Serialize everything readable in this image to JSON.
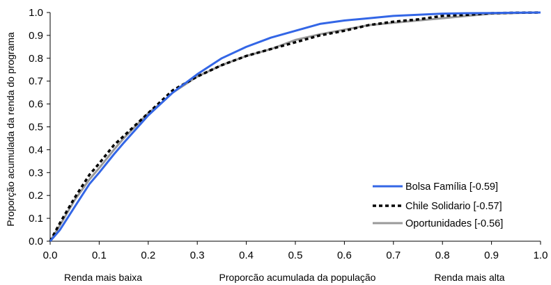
{
  "chart_data": {
    "type": "line",
    "title": "",
    "ylabel": "Proporção acumulada da renda do programa",
    "xlabel": "Proporcão acumulada da população",
    "x_left_label": "Renda mais baixa",
    "x_right_label": "Renda mais alta",
    "xlim": [
      0.0,
      1.0
    ],
    "ylim": [
      0.0,
      1.0
    ],
    "x_ticks": [
      "0.0",
      "0.1",
      "0.2",
      "0.3",
      "0.4",
      "0.5",
      "0.6",
      "0.7",
      "0.8",
      "0.9",
      "1.0"
    ],
    "y_ticks": [
      "0.0",
      "0.1",
      "0.2",
      "0.3",
      "0.4",
      "0.5",
      "0.6",
      "0.7",
      "0.8",
      "0.9",
      "1.0"
    ],
    "grid": false,
    "legend_position": "bottom-right",
    "series": [
      {
        "name": "Bolsa Família [-0.59]",
        "color": "#3366e6",
        "style": "solid",
        "points": [
          [
            0,
            0
          ],
          [
            0.02,
            0.05
          ],
          [
            0.05,
            0.15
          ],
          [
            0.08,
            0.25
          ],
          [
            0.1,
            0.3
          ],
          [
            0.13,
            0.38
          ],
          [
            0.15,
            0.43
          ],
          [
            0.2,
            0.55
          ],
          [
            0.25,
            0.65
          ],
          [
            0.3,
            0.73
          ],
          [
            0.35,
            0.8
          ],
          [
            0.4,
            0.85
          ],
          [
            0.45,
            0.89
          ],
          [
            0.5,
            0.92
          ],
          [
            0.55,
            0.95
          ],
          [
            0.6,
            0.965
          ],
          [
            0.65,
            0.975
          ],
          [
            0.7,
            0.985
          ],
          [
            0.75,
            0.99
          ],
          [
            0.8,
            0.995
          ],
          [
            0.85,
            0.997
          ],
          [
            0.9,
            0.998
          ],
          [
            0.95,
            0.999
          ],
          [
            1.0,
            1.0
          ]
        ]
      },
      {
        "name": "Chile Solidario [-0.57]",
        "color": "#000000",
        "style": "dashed",
        "points": [
          [
            0,
            0
          ],
          [
            0.02,
            0.08
          ],
          [
            0.05,
            0.19
          ],
          [
            0.08,
            0.29
          ],
          [
            0.1,
            0.34
          ],
          [
            0.13,
            0.42
          ],
          [
            0.15,
            0.46
          ],
          [
            0.2,
            0.56
          ],
          [
            0.25,
            0.66
          ],
          [
            0.3,
            0.72
          ],
          [
            0.35,
            0.77
          ],
          [
            0.4,
            0.81
          ],
          [
            0.45,
            0.84
          ],
          [
            0.5,
            0.87
          ],
          [
            0.55,
            0.9
          ],
          [
            0.6,
            0.92
          ],
          [
            0.65,
            0.945
          ],
          [
            0.7,
            0.96
          ],
          [
            0.75,
            0.97
          ],
          [
            0.8,
            0.985
          ],
          [
            0.85,
            0.99
          ],
          [
            0.9,
            0.997
          ],
          [
            0.95,
            0.999
          ],
          [
            1.0,
            1.0
          ]
        ]
      },
      {
        "name": "Oportunidades [-0.56]",
        "color": "#999999",
        "style": "solid",
        "points": [
          [
            0,
            0
          ],
          [
            0.02,
            0.07
          ],
          [
            0.05,
            0.18
          ],
          [
            0.08,
            0.27
          ],
          [
            0.1,
            0.32
          ],
          [
            0.13,
            0.4
          ],
          [
            0.15,
            0.45
          ],
          [
            0.2,
            0.56
          ],
          [
            0.23,
            0.61
          ],
          [
            0.25,
            0.65
          ],
          [
            0.3,
            0.72
          ],
          [
            0.35,
            0.77
          ],
          [
            0.4,
            0.81
          ],
          [
            0.45,
            0.84
          ],
          [
            0.5,
            0.88
          ],
          [
            0.55,
            0.905
          ],
          [
            0.6,
            0.925
          ],
          [
            0.65,
            0.945
          ],
          [
            0.7,
            0.955
          ],
          [
            0.75,
            0.965
          ],
          [
            0.8,
            0.975
          ],
          [
            0.85,
            0.985
          ],
          [
            0.9,
            0.995
          ],
          [
            0.95,
            0.998
          ],
          [
            1.0,
            1.0
          ]
        ]
      }
    ]
  }
}
